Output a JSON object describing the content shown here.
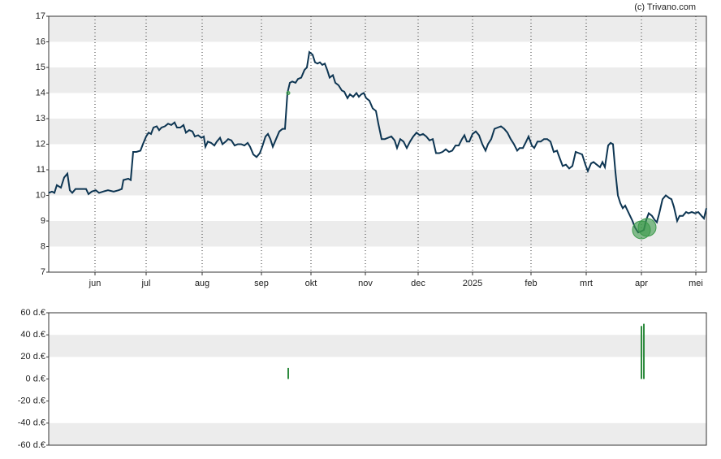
{
  "credit": "(c) Trivano.com",
  "chart_data": [
    {
      "type": "line",
      "color": "#0d3552",
      "grid": true,
      "xlim": [
        0,
        810
      ],
      "ylim": [
        7,
        17
      ],
      "yticks": [
        7,
        8,
        9,
        10,
        11,
        12,
        13,
        14,
        15,
        16,
        17
      ],
      "xticks": [
        {
          "value": 57,
          "label": "jun"
        },
        {
          "value": 120,
          "label": "jul"
        },
        {
          "value": 189,
          "label": "aug"
        },
        {
          "value": 262,
          "label": "sep"
        },
        {
          "value": 323,
          "label": "okt"
        },
        {
          "value": 390,
          "label": "nov"
        },
        {
          "value": 455,
          "label": "dec"
        },
        {
          "value": 522,
          "label": "2025"
        },
        {
          "value": 594,
          "label": "feb"
        },
        {
          "value": 662,
          "label": "mrt"
        },
        {
          "value": 730,
          "label": "apr"
        },
        {
          "value": 797,
          "label": "mei"
        }
      ],
      "x": [
        0,
        4,
        7,
        10,
        15,
        19,
        23,
        26,
        29,
        33,
        40,
        46,
        49,
        53,
        58,
        62,
        67,
        73,
        80,
        86,
        90,
        92,
        98,
        101,
        104,
        108,
        113,
        116,
        120,
        123,
        126,
        129,
        133,
        136,
        139,
        143,
        147,
        151,
        155,
        158,
        162,
        166,
        169,
        173,
        177,
        180,
        184,
        188,
        191,
        193,
        196,
        200,
        204,
        207,
        211,
        214,
        218,
        221,
        225,
        229,
        233,
        237,
        241,
        245,
        248,
        252,
        256,
        260,
        263,
        267,
        270,
        273,
        276,
        280,
        284,
        288,
        291,
        294,
        297,
        300,
        304,
        307,
        311,
        315,
        318,
        321,
        325,
        328,
        331,
        334,
        337,
        340,
        343,
        346,
        350,
        353,
        357,
        361,
        364,
        368,
        371,
        375,
        379,
        382,
        385,
        388,
        391,
        395,
        399,
        403,
        406,
        410,
        414,
        418,
        422,
        426,
        429,
        433,
        437,
        441,
        445,
        449,
        453,
        457,
        461,
        465,
        469,
        473,
        477,
        481,
        485,
        489,
        493,
        497,
        501,
        505,
        509,
        512,
        515,
        518,
        522,
        526,
        530,
        534,
        538,
        541,
        545,
        549,
        553,
        557,
        561,
        565,
        569,
        573,
        577,
        580,
        584,
        588,
        591,
        595,
        598,
        602,
        606,
        610,
        614,
        618,
        622,
        626,
        630,
        633,
        637,
        641,
        645,
        649,
        653,
        657,
        661,
        664,
        668,
        671,
        675,
        679,
        682,
        685,
        689,
        692,
        695,
        698,
        701,
        704,
        707,
        710,
        713,
        716,
        719,
        722,
        726,
        730,
        733,
        736,
        739,
        743,
        746,
        749,
        752,
        756,
        760,
        764,
        767,
        770,
        774,
        777,
        781,
        785,
        788,
        792,
        796,
        800,
        804,
        807,
        810
      ],
      "values": [
        10.1,
        10.15,
        10.1,
        10.4,
        10.3,
        10.7,
        10.85,
        10.2,
        10.1,
        10.25,
        10.25,
        10.25,
        10.05,
        10.15,
        10.2,
        10.1,
        10.15,
        10.2,
        10.15,
        10.2,
        10.25,
        10.6,
        10.65,
        10.6,
        11.7,
        11.7,
        11.75,
        12.0,
        12.3,
        12.45,
        12.4,
        12.65,
        12.7,
        12.55,
        12.65,
        12.7,
        12.8,
        12.75,
        12.85,
        12.65,
        12.65,
        12.75,
        12.45,
        12.55,
        12.5,
        12.3,
        12.35,
        12.25,
        12.3,
        11.9,
        12.1,
        12.05,
        11.95,
        12.1,
        12.25,
        12.0,
        12.1,
        12.2,
        12.15,
        11.95,
        12.0,
        12.0,
        11.95,
        12.05,
        11.9,
        11.6,
        11.5,
        11.65,
        11.9,
        12.3,
        12.4,
        12.2,
        11.9,
        12.2,
        12.5,
        12.6,
        12.6,
        14.0,
        14.4,
        14.45,
        14.4,
        14.55,
        14.6,
        14.9,
        15.0,
        15.6,
        15.5,
        15.2,
        15.15,
        15.2,
        15.1,
        15.15,
        14.9,
        14.6,
        14.7,
        14.4,
        14.3,
        14.1,
        14.05,
        13.8,
        13.95,
        13.85,
        14.0,
        13.85,
        13.95,
        14.0,
        13.8,
        13.7,
        13.4,
        13.3,
        12.8,
        12.2,
        12.2,
        12.25,
        12.3,
        12.15,
        11.85,
        12.2,
        12.1,
        11.85,
        12.1,
        12.3,
        12.45,
        12.35,
        12.4,
        12.3,
        12.15,
        12.2,
        11.65,
        11.65,
        11.7,
        11.8,
        11.7,
        11.75,
        11.95,
        11.95,
        12.2,
        12.35,
        12.1,
        12.1,
        12.4,
        12.5,
        12.35,
        12.0,
        11.75,
        12.0,
        12.2,
        12.6,
        12.65,
        12.7,
        12.6,
        12.45,
        12.2,
        12.0,
        11.75,
        11.85,
        11.85,
        12.1,
        12.3,
        11.95,
        11.85,
        12.1,
        12.1,
        12.2,
        12.2,
        12.1,
        11.7,
        11.75,
        11.4,
        11.15,
        11.2,
        11.05,
        11.15,
        11.7,
        11.65,
        11.6,
        11.2,
        10.95,
        11.25,
        11.3,
        11.2,
        11.1,
        11.3,
        11.1,
        11.95,
        12.05,
        12.0,
        10.9,
        10.0,
        9.7,
        9.5,
        9.6,
        9.4,
        9.2,
        9.0,
        8.75,
        8.55,
        8.6,
        8.65,
        9.05,
        9.3,
        9.2,
        9.05,
        8.95,
        9.3,
        9.85,
        10.0,
        9.9,
        9.85,
        9.55,
        9.0,
        9.2,
        9.2,
        9.35,
        9.3,
        9.35,
        9.3,
        9.35,
        9.2,
        9.1,
        9.5
      ],
      "markers": {
        "color": "#3a9a4a",
        "x": [
          295,
          730,
          737
        ],
        "values": [
          14.0,
          8.65,
          8.75
        ]
      }
    },
    {
      "type": "bar",
      "color": "#2e8b3e",
      "xlim": [
        0,
        810
      ],
      "ylim": [
        -60,
        60
      ],
      "yticks": [
        {
          "value": -60,
          "label": "-60 d.€"
        },
        {
          "value": -40,
          "label": "-40 d.€"
        },
        {
          "value": -20,
          "label": "-20 d.€"
        },
        {
          "value": 0,
          "label": "0 d.€"
        },
        {
          "value": 20,
          "label": "20 d.€"
        },
        {
          "value": 40,
          "label": "40 d.€"
        },
        {
          "value": 60,
          "label": "60 d.€"
        }
      ],
      "x": [
        295,
        730,
        733
      ],
      "values": [
        10,
        48,
        50
      ]
    }
  ]
}
